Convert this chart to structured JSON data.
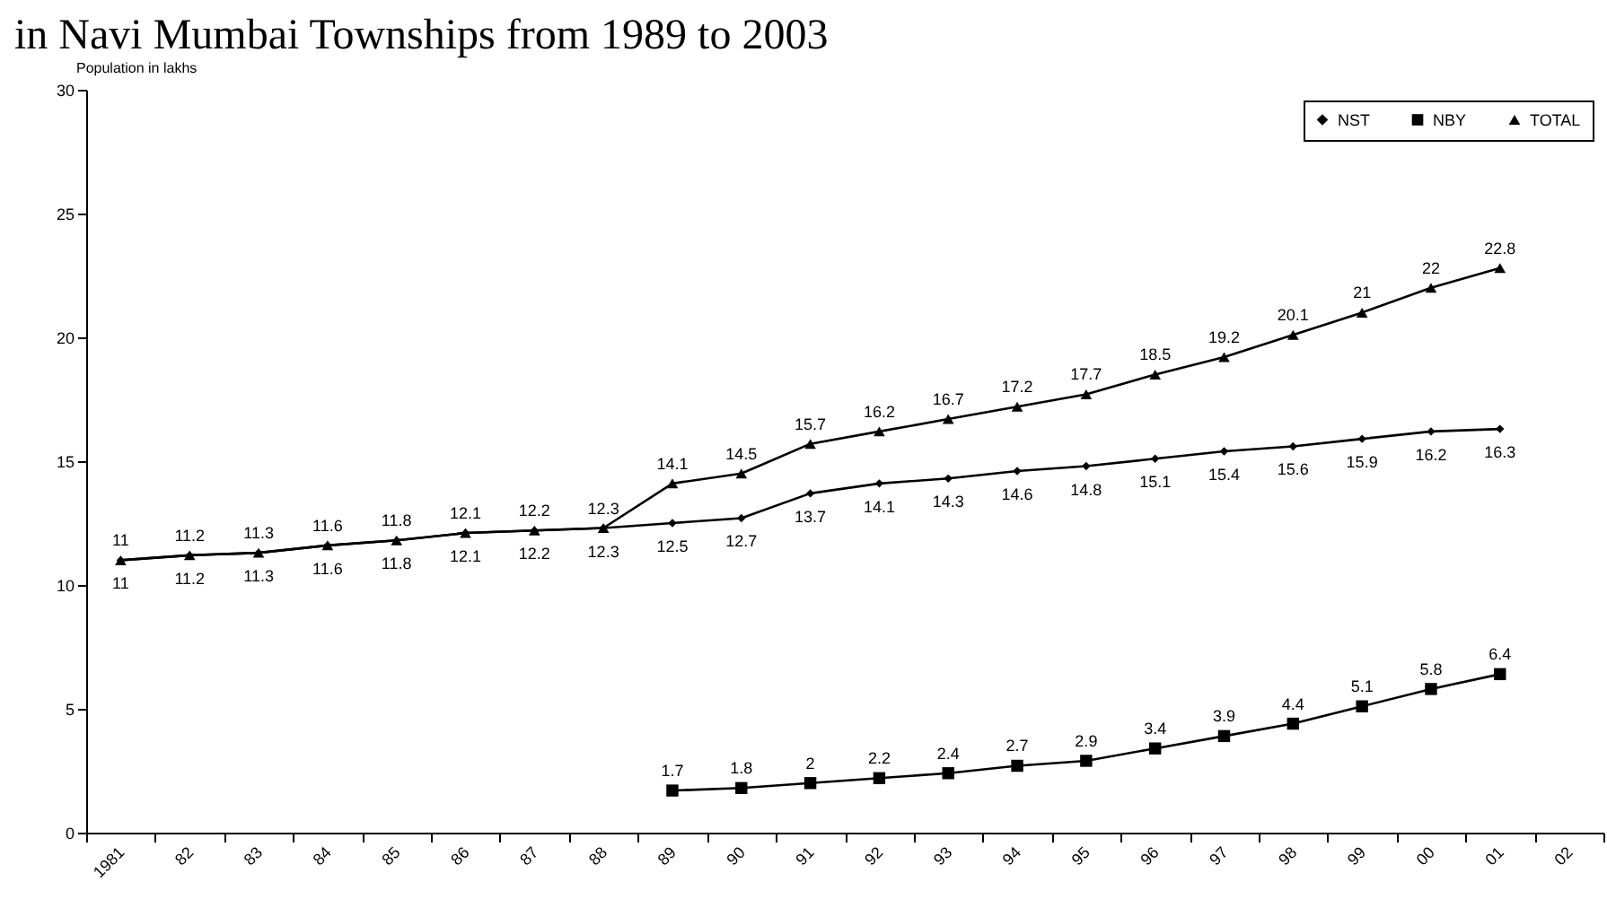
{
  "chart_data": {
    "type": "line",
    "title": "in Navi Mumbai Townships from 1989 to 2003",
    "ylabel": "Population in lakhs",
    "categories": [
      "1981",
      "82",
      "83",
      "84",
      "85",
      "86",
      "87",
      "88",
      "89",
      "90",
      "91",
      "92",
      "93",
      "94",
      "95",
      "96",
      "97",
      "98",
      "99",
      "00",
      "01",
      "02"
    ],
    "ylim": [
      0,
      30
    ],
    "yticks": [
      0,
      5,
      10,
      15,
      20,
      25,
      30
    ],
    "legend": "top right",
    "data_labels": true,
    "series": [
      {
        "name": "NST",
        "color": "#000000",
        "marker": "diamond",
        "values": [
          11,
          11.2,
          11.3,
          11.6,
          11.8,
          12.1,
          12.2,
          12.3,
          12.5,
          12.7,
          13.7,
          14.1,
          14.3,
          14.6,
          14.8,
          15.1,
          15.4,
          15.6,
          15.9,
          16.2,
          16.3,
          null
        ]
      },
      {
        "name": "NBY",
        "color": "#000000",
        "marker": "square",
        "values": [
          null,
          null,
          null,
          null,
          null,
          null,
          null,
          null,
          1.7,
          1.8,
          2,
          2.2,
          2.4,
          2.7,
          2.9,
          3.4,
          3.9,
          4.4,
          5.1,
          5.8,
          6.4,
          null
        ]
      },
      {
        "name": "TOTAL",
        "color": "#000000",
        "marker": "triangle",
        "values": [
          11,
          11.2,
          11.3,
          11.6,
          11.8,
          12.1,
          12.2,
          12.3,
          14.1,
          14.5,
          15.7,
          16.2,
          16.7,
          17.2,
          17.7,
          18.5,
          19.2,
          20.1,
          21,
          22,
          22.8,
          null
        ]
      }
    ]
  }
}
